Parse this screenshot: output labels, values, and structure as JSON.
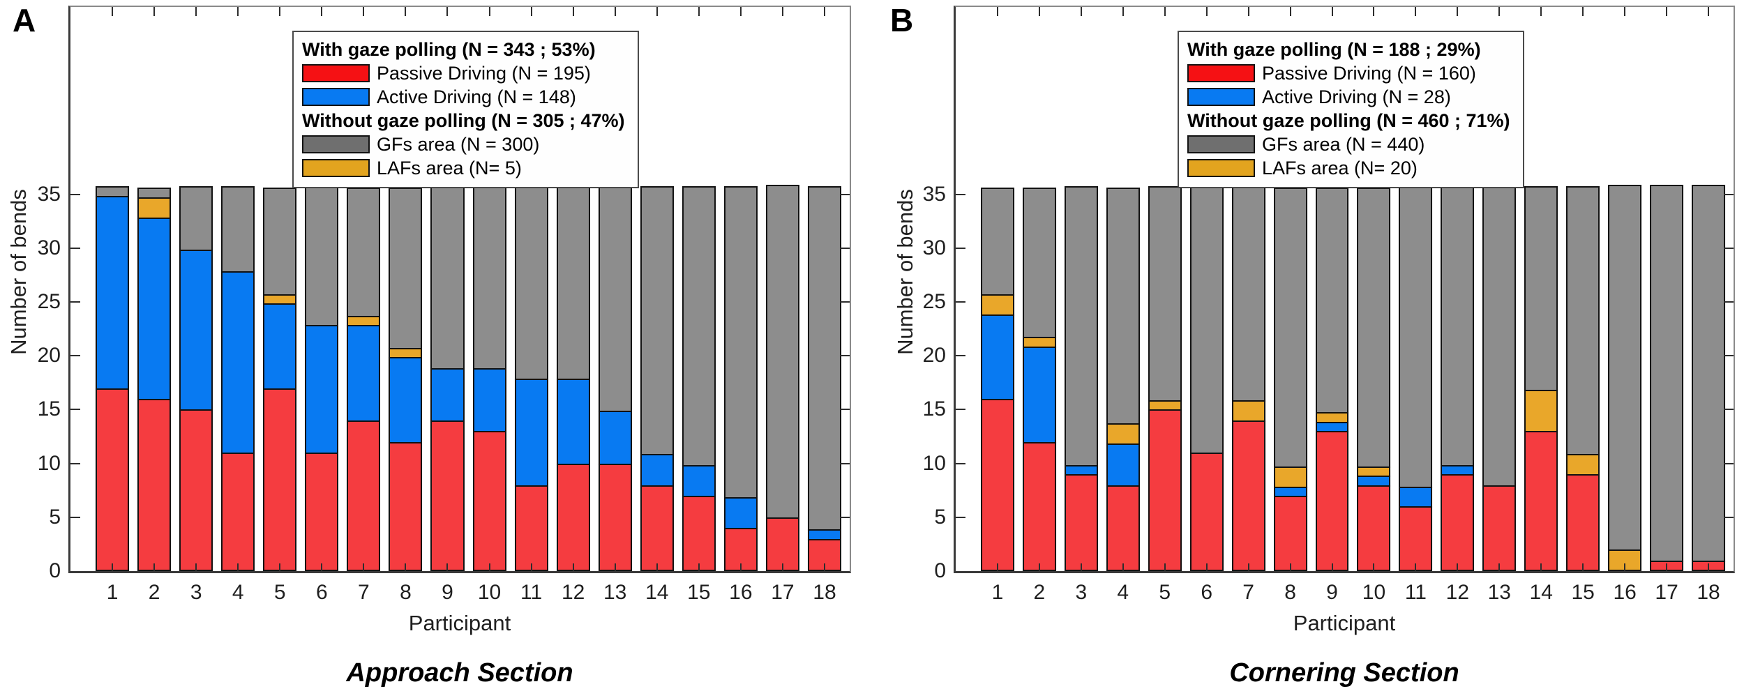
{
  "figure": {
    "ylabel": "Number of bends",
    "xlabel": "Participant"
  },
  "chart_data": [
    {
      "type": "bar",
      "stacked": true,
      "panel_letter": "A",
      "title": "Approach Section",
      "xlabel": "Participant",
      "ylabel": "Number of bends",
      "categories": [
        "1",
        "2",
        "3",
        "4",
        "5",
        "6",
        "7",
        "8",
        "9",
        "10",
        "11",
        "12",
        "13",
        "14",
        "15",
        "16",
        "17",
        "18"
      ],
      "yticks": [
        0,
        5,
        10,
        15,
        20,
        25,
        30,
        35
      ],
      "bar_total": 36,
      "ymax": 52.4,
      "grid": false,
      "legend_position": "top-center-inside",
      "series": [
        {
          "name": "Passive Driving (N = 195)",
          "color": "#f53c40",
          "values": [
            17,
            16,
            15,
            11,
            17,
            11,
            14,
            12,
            14,
            13,
            8,
            10,
            10,
            8,
            7,
            4,
            5,
            3
          ]
        },
        {
          "name": "Active Driving (N = 148)",
          "color": "#087af2",
          "values": [
            18,
            17,
            15,
            17,
            8,
            12,
            9,
            8,
            5,
            6,
            10,
            8,
            5,
            3,
            3,
            3,
            0,
            1
          ]
        },
        {
          "name": "LAFs area (N= 5)",
          "color": "#e9a72a",
          "values": [
            0,
            2,
            0,
            0,
            1,
            0,
            1,
            1,
            0,
            0,
            0,
            0,
            0,
            0,
            0,
            0,
            0,
            0
          ]
        },
        {
          "name": "GFs area (N = 300)",
          "color": "#8d8d8d",
          "values": [
            1,
            1,
            6,
            8,
            10,
            13,
            12,
            15,
            17,
            17,
            18,
            18,
            21,
            25,
            26,
            29,
            31,
            32
          ]
        }
      ],
      "legend": {
        "rows": [
          {
            "kind": "header",
            "text": "With gaze polling (N = 343 ; 53%)"
          },
          {
            "kind": "item",
            "swatch": "#f51114",
            "text": "Passive Driving (N = 195)"
          },
          {
            "kind": "item",
            "swatch": "#087af2",
            "text": "Active Driving (N = 148)"
          },
          {
            "kind": "header",
            "text": "Without gaze polling (N = 305 ; 47%)"
          },
          {
            "kind": "item",
            "swatch": "#6f6f6f",
            "text": "GFs area (N = 300)"
          },
          {
            "kind": "item",
            "swatch": "#e2a41f",
            "text": "LAFs area (N= 5)"
          }
        ]
      }
    },
    {
      "type": "bar",
      "stacked": true,
      "panel_letter": "B",
      "title": "Cornering Section",
      "xlabel": "Participant",
      "ylabel": "Number of bends",
      "categories": [
        "1",
        "2",
        "3",
        "4",
        "5",
        "6",
        "7",
        "8",
        "9",
        "10",
        "11",
        "12",
        "13",
        "14",
        "15",
        "16",
        "17",
        "18"
      ],
      "yticks": [
        0,
        5,
        10,
        15,
        20,
        25,
        30,
        35
      ],
      "bar_total": 36,
      "ymax": 52.4,
      "grid": false,
      "legend_position": "top-center-inside",
      "series": [
        {
          "name": "Passive Driving (N = 160)",
          "color": "#f53c40",
          "values": [
            16,
            12,
            9,
            8,
            15,
            11,
            14,
            7,
            13,
            8,
            6,
            9,
            8,
            13,
            9,
            0,
            1,
            1
          ]
        },
        {
          "name": "Active Driving (N = 28)",
          "color": "#087af2",
          "values": [
            8,
            9,
            1,
            4,
            0,
            0,
            0,
            1,
            1,
            1,
            2,
            1,
            0,
            0,
            0,
            0,
            0,
            0
          ]
        },
        {
          "name": "LAFs area (N= 20)",
          "color": "#e9a72a",
          "values": [
            2,
            1,
            0,
            2,
            1,
            0,
            2,
            2,
            1,
            1,
            0,
            0,
            0,
            4,
            2,
            2,
            0,
            0
          ]
        },
        {
          "name": "GFs area (N = 440)",
          "color": "#8d8d8d",
          "values": [
            10,
            14,
            26,
            22,
            20,
            25,
            20,
            26,
            21,
            26,
            28,
            26,
            28,
            19,
            25,
            34,
            35,
            35
          ]
        }
      ],
      "legend": {
        "rows": [
          {
            "kind": "header",
            "text": "With gaze polling (N = 188 ; 29%)"
          },
          {
            "kind": "item",
            "swatch": "#f51114",
            "text": "Passive Driving (N = 160)"
          },
          {
            "kind": "item",
            "swatch": "#087af2",
            "text": "Active Driving (N = 28)"
          },
          {
            "kind": "header",
            "text": "Without gaze polling (N = 460 ; 71%)"
          },
          {
            "kind": "item",
            "swatch": "#6f6f6f",
            "text": "GFs area (N = 440)"
          },
          {
            "kind": "item",
            "swatch": "#e2a41f",
            "text": "LAFs area (N= 20)"
          }
        ]
      }
    }
  ]
}
